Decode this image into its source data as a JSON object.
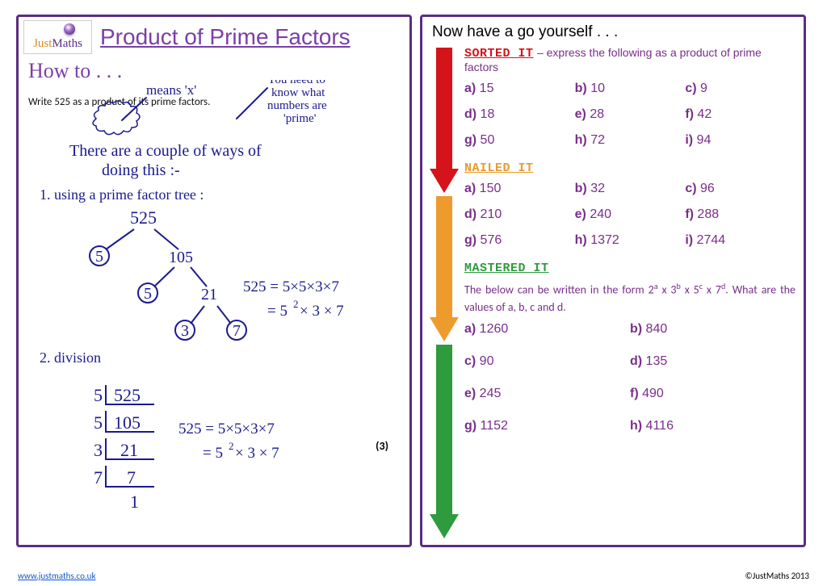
{
  "title": "Product of Prime Factors",
  "logo": {
    "text_j": "Just",
    "text_m": "Maths"
  },
  "howto": "How to . . .",
  "instruction": "Write 525 as a product of its prime factors.",
  "marks": "(3)",
  "handwriting": {
    "ink_color": "#1a1a8e",
    "note_means": "means 'x'",
    "note_need": "You need to\nknow what\nnumbers are\n'prime'",
    "intro": "There are a couple of ways of\ndoing this :-",
    "method1_label": "1. using a prime factor tree :",
    "tree": {
      "root": "525",
      "l1": [
        "5",
        "105"
      ],
      "l2": [
        "5",
        "21"
      ],
      "l3": [
        "3",
        "7"
      ]
    },
    "eq1_a": "525 = 5×5×3×7",
    "eq1_b": "= 5² × 3 × 7",
    "method2_label": "2. division",
    "ladder": [
      [
        "5",
        "525"
      ],
      [
        "5",
        "105"
      ],
      [
        "3",
        "21"
      ],
      [
        "7",
        "7"
      ],
      [
        "",
        "1"
      ]
    ],
    "eq2_a": "525 = 5×5×3×7",
    "eq2_b": "= 5² × 3 × 7"
  },
  "try_title": "Now have a go yourself . . .",
  "arrows": {
    "sorted_color": "#d4131a",
    "nailed_color": "#ee9b2e",
    "mastered_color": "#2e9b3e"
  },
  "sorted": {
    "head": "SORTED  IT",
    "sub": "– express the following as a product of prime factors",
    "items": [
      {
        "l": "a)",
        "v": "15"
      },
      {
        "l": "b)",
        "v": "10"
      },
      {
        "l": "c)",
        "v": "9"
      },
      {
        "l": "d)",
        "v": "18"
      },
      {
        "l": "e)",
        "v": "28"
      },
      {
        "l": "f)",
        "v": "42"
      },
      {
        "l": "g)",
        "v": "50"
      },
      {
        "l": "h)",
        "v": "72"
      },
      {
        "l": "i)",
        "v": "94"
      }
    ]
  },
  "nailed": {
    "head": "NAILED IT",
    "items": [
      {
        "l": "a)",
        "v": "150"
      },
      {
        "l": "b)",
        "v": "32"
      },
      {
        "l": "c)",
        "v": "96"
      },
      {
        "l": "d)",
        "v": "210"
      },
      {
        "l": "e)",
        "v": "240"
      },
      {
        "l": "f)",
        "v": "288"
      },
      {
        "l": "g)",
        "v": "576"
      },
      {
        "l": "h)",
        "v": "1372"
      },
      {
        "l": "i)",
        "v": "2744"
      }
    ]
  },
  "mastered": {
    "head": "MASTERED IT",
    "prompt_pre": "The below can be written in the form 2",
    "prompt_post": ". What are the values of a, b, c and d.",
    "items": [
      {
        "l": "a)",
        "v": "1260"
      },
      {
        "l": "b)",
        "v": "840"
      },
      {
        "l": "c)",
        "v": "90"
      },
      {
        "l": "d)",
        "v": "135"
      },
      {
        "l": "e)",
        "v": "245"
      },
      {
        "l": "f)",
        "v": "490"
      },
      {
        "l": "g)",
        "v": "1152"
      },
      {
        "l": "h)",
        "v": "4116"
      }
    ]
  },
  "footer": {
    "url": "www.justmaths.co.uk",
    "copyright": "©JustMaths 2013"
  }
}
